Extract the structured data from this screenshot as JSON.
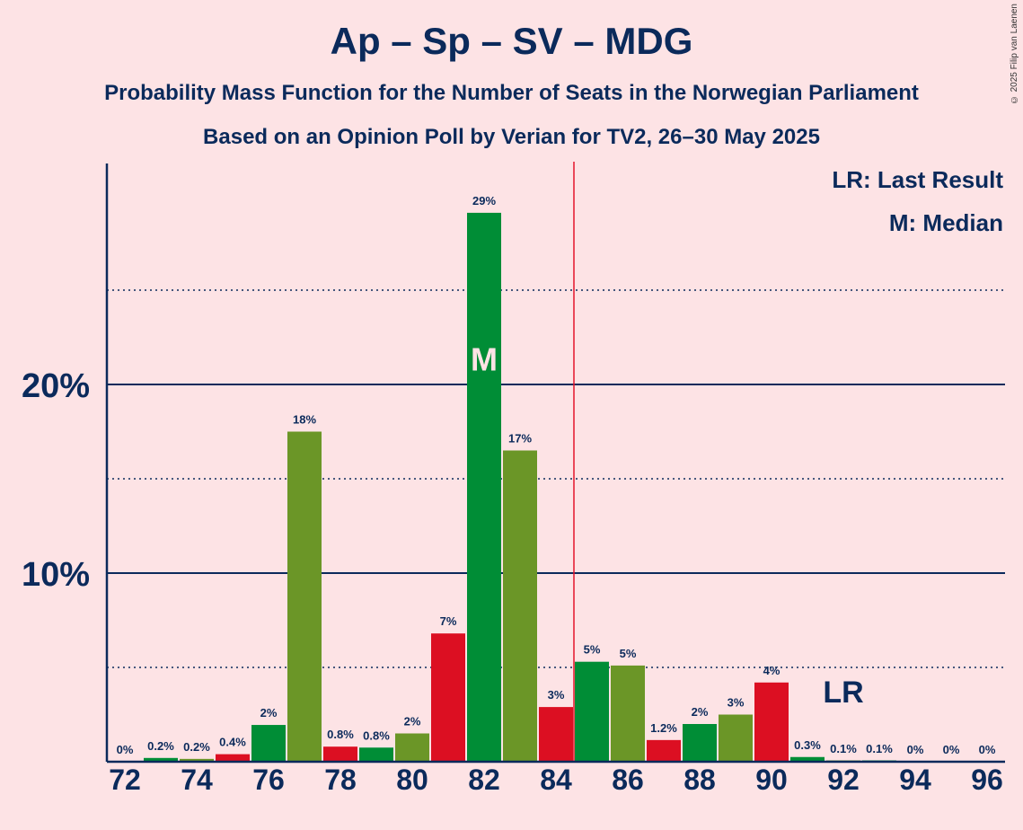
{
  "chart_data": {
    "type": "bar",
    "title": "Ap – Sp – SV – MDG",
    "subtitle": "Probability Mass Function for the Number of Seats in the Norwegian Parliament",
    "subtitle2": "Based on an Opinion Poll by Verian for TV2, 26–30 May 2025",
    "copyright": "© 2025 Filip van Laenen",
    "legend": [
      "LR: Last Result",
      "M: Median"
    ],
    "xlabel": "",
    "ylabel": "",
    "xlim": [
      71.5,
      96.5
    ],
    "ylim": [
      0,
      31.7
    ],
    "x_ticks": [
      72,
      74,
      76,
      78,
      80,
      82,
      84,
      86,
      88,
      90,
      92,
      94,
      96
    ],
    "y_ticks": [
      {
        "value": 10,
        "label": "10%"
      },
      {
        "value": 20,
        "label": "20%"
      }
    ],
    "dotted_gridlines": [
      5,
      15,
      25
    ],
    "majority_line": 84.5,
    "median_seat": 82,
    "median_label": "M",
    "last_result_seat": 92,
    "last_result_label": "LR",
    "bars": [
      {
        "seats": 72,
        "value": 0,
        "label": "0%"
      },
      {
        "seats": 73,
        "value": 0.2,
        "label": "0.2%"
      },
      {
        "seats": 74,
        "value": 0.15,
        "label": "0.2%"
      },
      {
        "seats": 75,
        "value": 0.4,
        "label": "0.4%"
      },
      {
        "seats": 76,
        "value": 1.95,
        "label": "2%"
      },
      {
        "seats": 77,
        "value": 17.5,
        "label": "18%"
      },
      {
        "seats": 78,
        "value": 0.8,
        "label": "0.8%"
      },
      {
        "seats": 79,
        "value": 0.75,
        "label": "0.8%"
      },
      {
        "seats": 80,
        "value": 1.5,
        "label": "2%"
      },
      {
        "seats": 81,
        "value": 6.8,
        "label": "7%"
      },
      {
        "seats": 82,
        "value": 29.1,
        "label": "29%"
      },
      {
        "seats": 83,
        "value": 16.5,
        "label": "17%"
      },
      {
        "seats": 84,
        "value": 2.9,
        "label": "3%"
      },
      {
        "seats": 85,
        "value": 5.3,
        "label": "5%"
      },
      {
        "seats": 86,
        "value": 5.1,
        "label": "5%"
      },
      {
        "seats": 87,
        "value": 1.15,
        "label": "1.2%"
      },
      {
        "seats": 88,
        "value": 2.0,
        "label": "2%"
      },
      {
        "seats": 89,
        "value": 2.5,
        "label": "3%"
      },
      {
        "seats": 90,
        "value": 4.2,
        "label": "4%"
      },
      {
        "seats": 91,
        "value": 0.25,
        "label": "0.3%"
      },
      {
        "seats": 92,
        "value": 0.05,
        "label": "0.1%"
      },
      {
        "seats": 93,
        "value": 0.05,
        "label": "0.1%"
      },
      {
        "seats": 94,
        "value": 0,
        "label": "0%"
      },
      {
        "seats": 95,
        "value": 0,
        "label": "0%"
      },
      {
        "seats": 96,
        "value": 0,
        "label": "0%"
      }
    ],
    "colors": {
      "background": "#fde3e5",
      "text": "#0b2a5b",
      "red": "#dc0f22",
      "green": "#008d36",
      "olive": "#6b9627",
      "majority_line": "#e3142b",
      "median_text": "#fde3e5"
    }
  }
}
